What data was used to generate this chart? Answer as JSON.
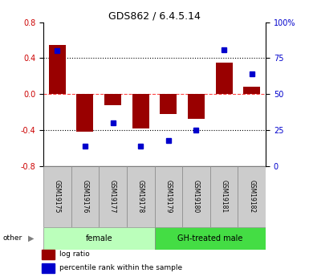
{
  "title": "GDS862 / 6.4.5.14",
  "samples": [
    "GSM19175",
    "GSM19176",
    "GSM19177",
    "GSM19178",
    "GSM19179",
    "GSM19180",
    "GSM19181",
    "GSM19182"
  ],
  "log_ratio": [
    0.55,
    -0.42,
    -0.12,
    -0.38,
    -0.22,
    -0.27,
    0.35,
    0.08
  ],
  "percentile_rank": [
    80,
    14,
    30,
    14,
    18,
    25,
    81,
    64
  ],
  "ylim": [
    -0.8,
    0.8
  ],
  "yticks_left": [
    -0.8,
    -0.4,
    0.0,
    0.4,
    0.8
  ],
  "yticks_right": [
    0,
    25,
    50,
    75,
    100
  ],
  "bar_color": "#990000",
  "dot_color": "#0000CC",
  "zero_line_color": "#FF4444",
  "female_label": "female",
  "male_label": "GH-treated male",
  "female_color": "#bbffbb",
  "male_color": "#44dd44",
  "other_label": "other",
  "legend_ratio": "log ratio",
  "legend_percentile": "percentile rank within the sample",
  "tick_label_color_left": "#CC0000",
  "tick_label_color_right": "#0000CC",
  "box_facecolor": "#cccccc",
  "box_edgecolor": "#888888"
}
